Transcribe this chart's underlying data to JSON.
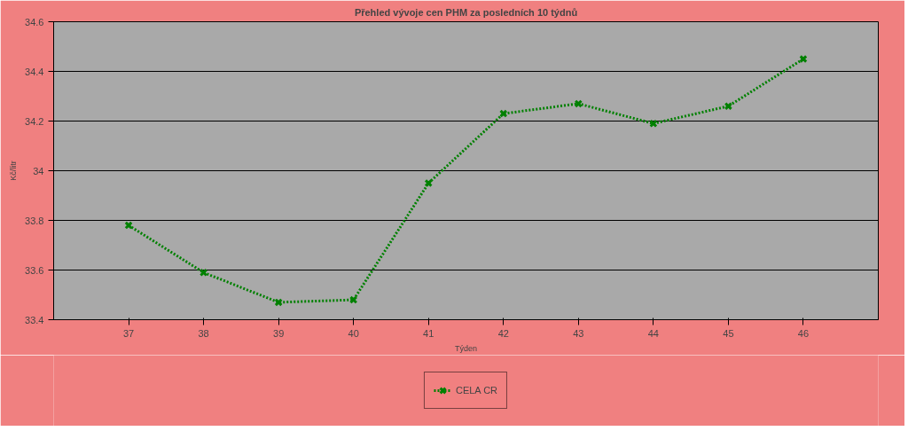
{
  "chart_data": {
    "type": "line",
    "title": "Přehled vývoje cen PHM za posledních 10 týdnů",
    "xlabel": "Týden",
    "ylabel": "Kč/litr",
    "x": [
      37,
      38,
      39,
      40,
      41,
      42,
      43,
      44,
      45,
      46
    ],
    "series": [
      {
        "name": "CELA CR",
        "color": "#008000",
        "values": [
          33.78,
          33.59,
          33.47,
          33.48,
          33.95,
          34.23,
          34.27,
          34.19,
          34.26,
          34.45
        ]
      }
    ],
    "xlim": [
      36,
      47
    ],
    "xticks": [
      37,
      38,
      39,
      40,
      41,
      42,
      43,
      44,
      45,
      46
    ],
    "ylim": [
      33.4,
      34.6
    ],
    "yticks": [
      33.4,
      33.6,
      33.8,
      {
        "value": 34,
        "label": "34"
      },
      34.2,
      34.4,
      34.6
    ],
    "grid": "y",
    "legend": "bottom",
    "marker": "cross",
    "line_style": "dotted"
  }
}
